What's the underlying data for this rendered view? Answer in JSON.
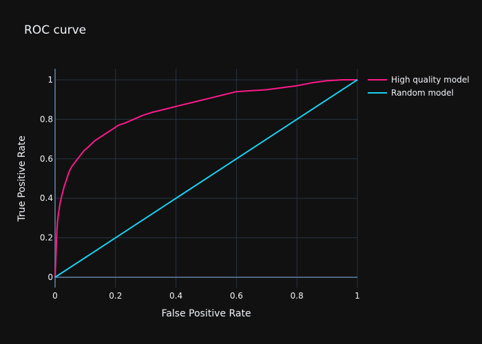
{
  "chart_data": {
    "type": "line",
    "title": "ROC curve",
    "xlabel": "False Positive Rate",
    "ylabel": "True Positive Rate",
    "xlim": [
      0,
      1
    ],
    "ylim": [
      0,
      1
    ],
    "xticks": [
      0,
      0.2,
      0.4,
      0.6,
      0.8,
      1
    ],
    "xtick_labels": [
      "0",
      "0.2",
      "0.4",
      "0.6",
      "0.8",
      "1"
    ],
    "yticks": [
      0,
      0.2,
      0.4,
      0.6,
      0.8,
      1
    ],
    "ytick_labels": [
      "0",
      "0.2",
      "0.4",
      "0.6",
      "0.8",
      "1"
    ],
    "grid": true,
    "legend_position": "top-right",
    "background": "#111111",
    "grid_color": "#283442",
    "series": [
      {
        "name": "High quality model",
        "color": "#ff1a8c",
        "x": [
          0,
          0.002,
          0.004,
          0.006,
          0.008,
          0.01,
          0.013,
          0.016,
          0.02,
          0.025,
          0.03,
          0.037,
          0.045,
          0.055,
          0.065,
          0.08,
          0.095,
          0.11,
          0.13,
          0.15,
          0.17,
          0.19,
          0.21,
          0.23,
          0.26,
          0.29,
          0.32,
          0.36,
          0.4,
          0.44,
          0.48,
          0.52,
          0.56,
          0.6,
          0.65,
          0.7,
          0.75,
          0.8,
          0.85,
          0.9,
          0.95,
          1.0
        ],
        "y": [
          0,
          0.08,
          0.16,
          0.23,
          0.28,
          0.31,
          0.34,
          0.37,
          0.4,
          0.43,
          0.46,
          0.49,
          0.53,
          0.56,
          0.58,
          0.61,
          0.64,
          0.66,
          0.69,
          0.71,
          0.73,
          0.75,
          0.77,
          0.78,
          0.8,
          0.82,
          0.835,
          0.85,
          0.865,
          0.88,
          0.895,
          0.91,
          0.925,
          0.94,
          0.945,
          0.95,
          0.96,
          0.97,
          0.985,
          0.995,
          1.0,
          1.0
        ]
      },
      {
        "name": "Random model",
        "color": "#19d3f3",
        "x": [
          0,
          1
        ],
        "y": [
          0,
          1
        ]
      }
    ]
  }
}
